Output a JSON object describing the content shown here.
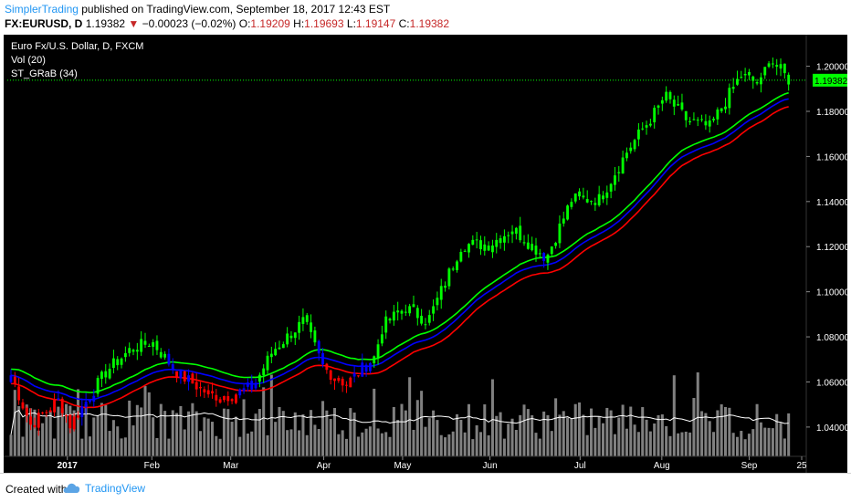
{
  "header": {
    "author": "SimplerTrading",
    "published_text": " published on TradingView.com, September 18, 2017 12:43 EST",
    "symbol": "FX:EURUSD, D",
    "last": "1.19382",
    "down_arrow": "▼",
    "change": "−0.00023 (−0.02%)",
    "o_label": "O:",
    "o_value": "1.19209",
    "h_label": "H:",
    "h_value": "1.19693",
    "l_label": "L:",
    "l_value": "1.19147",
    "c_label": "C:",
    "c_value": "1.19382"
  },
  "legend": {
    "title": "Euro Fx/U.S. Dollar, D, FXCM",
    "volume": "Vol (20)",
    "indicator": "ST_GRaB (34)"
  },
  "footer": {
    "created_with": "Created with",
    "brand": "TradingView",
    "logo_icon": "tradingview-cloud-icon"
  },
  "colors": {
    "background": "#000000",
    "bull_candle": "#00ff00",
    "bear_candle": "#ff0000",
    "neutral_candle": "#0000ff",
    "ma_high": "#00ff00",
    "ma_close": "#0000ff",
    "ma_low": "#ff0000",
    "volume": "#808080",
    "volume_ma": "#ffffff",
    "price_line": "#00ff00",
    "axis_text": "#ffffff"
  },
  "chart_data": {
    "type": "candlestick",
    "title": "Euro Fx/U.S. Dollar, D, FXCM",
    "ylim": [
      1.027,
      1.214
    ],
    "y_ticks": [
      "1.20000",
      "1.18000",
      "1.16000",
      "1.14000",
      "1.12000",
      "1.10000",
      "1.08000",
      "1.06000",
      "1.04000"
    ],
    "x_ticks": [
      "2017",
      "Feb",
      "Mar",
      "Apr",
      "May",
      "Jun",
      "Jul",
      "Aug",
      "Sep",
      "25"
    ],
    "last_price_label": "1.19382",
    "last_price": 1.19382,
    "grid": false,
    "monthly_anchor_closes": [
      {
        "date": "2016-12-13",
        "close": 1.063
      },
      {
        "date": "2016-12-20",
        "close": 1.041
      },
      {
        "date": "2016-12-30",
        "close": 1.052
      },
      {
        "date": "2017-01-03",
        "close": 1.041
      },
      {
        "date": "2017-01-16",
        "close": 1.065
      },
      {
        "date": "2017-01-24",
        "close": 1.074
      },
      {
        "date": "2017-02-01",
        "close": 1.078
      },
      {
        "date": "2017-02-10",
        "close": 1.064
      },
      {
        "date": "2017-02-22",
        "close": 1.054
      },
      {
        "date": "2017-03-01",
        "close": 1.054
      },
      {
        "date": "2017-03-09",
        "close": 1.058
      },
      {
        "date": "2017-03-16",
        "close": 1.074
      },
      {
        "date": "2017-03-27",
        "close": 1.087
      },
      {
        "date": "2017-04-03",
        "close": 1.066
      },
      {
        "date": "2017-04-11",
        "close": 1.059
      },
      {
        "date": "2017-04-21",
        "close": 1.071
      },
      {
        "date": "2017-04-24",
        "close": 1.085
      },
      {
        "date": "2017-05-02",
        "close": 1.093
      },
      {
        "date": "2017-05-10",
        "close": 1.087
      },
      {
        "date": "2017-05-22",
        "close": 1.121
      },
      {
        "date": "2017-06-01",
        "close": 1.121
      },
      {
        "date": "2017-06-09",
        "close": 1.128
      },
      {
        "date": "2017-06-21",
        "close": 1.115
      },
      {
        "date": "2017-06-30",
        "close": 1.141
      },
      {
        "date": "2017-07-10",
        "close": 1.141
      },
      {
        "date": "2017-07-20",
        "close": 1.163
      },
      {
        "date": "2017-07-31",
        "close": 1.182
      },
      {
        "date": "2017-08-02",
        "close": 1.187
      },
      {
        "date": "2017-08-10",
        "close": 1.176
      },
      {
        "date": "2017-08-18",
        "close": 1.173
      },
      {
        "date": "2017-08-29",
        "close": 1.196
      },
      {
        "date": "2017-09-05",
        "close": 1.192
      },
      {
        "date": "2017-09-08",
        "close": 1.204
      },
      {
        "date": "2017-09-15",
        "close": 1.194
      }
    ]
  }
}
